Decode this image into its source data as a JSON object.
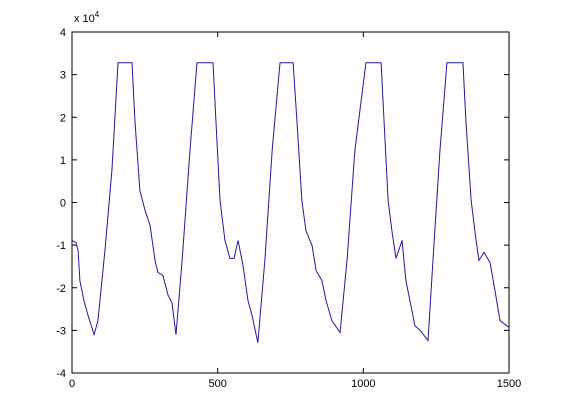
{
  "chart_data": {
    "type": "line",
    "y_multiplier": {
      "text": "x 10",
      "exponent": "4"
    },
    "x": [
      0,
      14,
      21,
      27,
      41,
      55,
      76,
      89,
      113,
      137,
      158,
      206,
      216,
      233,
      251,
      268,
      285,
      295,
      312,
      330,
      343,
      357,
      378,
      405,
      429,
      484,
      494,
      508,
      525,
      542,
      556,
      570,
      587,
      604,
      618,
      638,
      662,
      687,
      714,
      759,
      772,
      789,
      803,
      824,
      838,
      858,
      872,
      892,
      920,
      944,
      971,
      1009,
      1061,
      1071,
      1085,
      1098,
      1112,
      1133,
      1146,
      1160,
      1177,
      1195,
      1222,
      1239,
      1263,
      1287,
      1342,
      1352,
      1370,
      1387,
      1397,
      1414,
      1435,
      1452,
      1469,
      1500
    ],
    "values": [
      -0.89,
      -0.94,
      -1.13,
      -1.83,
      -2.3,
      -2.65,
      -3.1,
      -2.77,
      -1.13,
      0.75,
      3.28,
      3.28,
      1.92,
      0.28,
      -0.19,
      -0.54,
      -1.36,
      -1.64,
      -1.71,
      -2.18,
      -2.35,
      -3.1,
      -1.36,
      1.22,
      3.28,
      3.28,
      1.92,
      0.05,
      -0.89,
      -1.31,
      -1.31,
      -0.89,
      -1.48,
      -2.3,
      -2.65,
      -3.29,
      -1.36,
      1.22,
      3.28,
      3.28,
      1.92,
      0.05,
      -0.66,
      -1.01,
      -1.6,
      -1.83,
      -2.3,
      -2.77,
      -3.05,
      -1.36,
      1.22,
      3.28,
      3.28,
      1.92,
      0.05,
      -0.66,
      -1.31,
      -0.89,
      -1.83,
      -2.3,
      -2.89,
      -3.0,
      -3.24,
      -1.36,
      1.22,
      3.28,
      3.28,
      1.92,
      0.05,
      -0.89,
      -1.36,
      -1.17,
      -1.41,
      -2.07,
      -2.77,
      -2.93
    ],
    "color": "#1c1c9c",
    "xlim": [
      0,
      1500
    ],
    "xticks": [
      0,
      500,
      1000,
      1500
    ],
    "ylim": [
      -4,
      4
    ],
    "yticks": [
      -4,
      -3,
      -2,
      -1,
      0,
      1,
      2,
      3,
      4
    ]
  }
}
